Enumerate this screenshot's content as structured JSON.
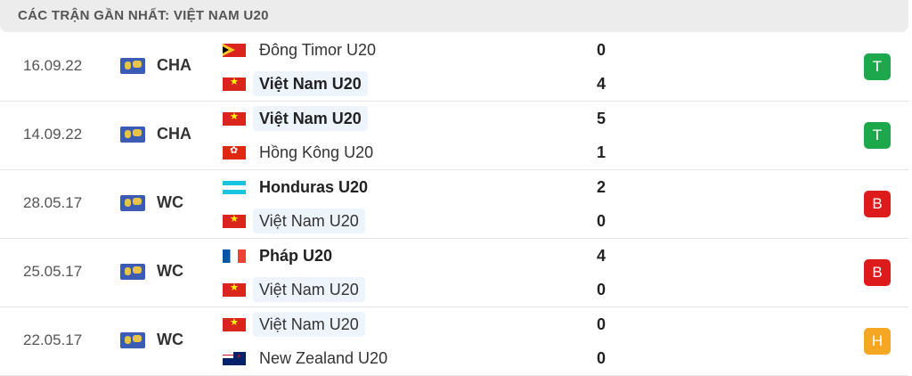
{
  "header": {
    "title": "CÁC TRẬN GẦN NHẤT: VIỆT NAM U20"
  },
  "colors": {
    "win": "#1ca84b",
    "loss": "#dd1b1b",
    "draw": "#f5a623",
    "highlight": "#edf4fc"
  },
  "matches": [
    {
      "date": "16.09.22",
      "competition": "CHA",
      "home": {
        "name": "Đông Timor U20",
        "flag": "tl",
        "score": "0",
        "bold": false,
        "hl": false
      },
      "away": {
        "name": "Việt Nam U20",
        "flag": "vn",
        "score": "4",
        "bold": true,
        "hl": true
      },
      "result": "T",
      "result_color": "#1ca84b"
    },
    {
      "date": "14.09.22",
      "competition": "CHA",
      "home": {
        "name": "Việt Nam U20",
        "flag": "vn",
        "score": "5",
        "bold": true,
        "hl": true
      },
      "away": {
        "name": "Hồng Kông U20",
        "flag": "hk",
        "score": "1",
        "bold": false,
        "hl": false
      },
      "result": "T",
      "result_color": "#1ca84b"
    },
    {
      "date": "28.05.17",
      "competition": "WC",
      "home": {
        "name": "Honduras U20",
        "flag": "hn",
        "score": "2",
        "bold": true,
        "hl": false
      },
      "away": {
        "name": "Việt Nam U20",
        "flag": "vn",
        "score": "0",
        "bold": false,
        "hl": true
      },
      "result": "B",
      "result_color": "#dd1b1b"
    },
    {
      "date": "25.05.17",
      "competition": "WC",
      "home": {
        "name": "Pháp U20",
        "flag": "fr",
        "score": "4",
        "bold": true,
        "hl": false
      },
      "away": {
        "name": "Việt Nam U20",
        "flag": "vn",
        "score": "0",
        "bold": false,
        "hl": true
      },
      "result": "B",
      "result_color": "#dd1b1b"
    },
    {
      "date": "22.05.17",
      "competition": "WC",
      "home": {
        "name": "Việt Nam U20",
        "flag": "vn",
        "score": "0",
        "bold": false,
        "hl": true
      },
      "away": {
        "name": "New Zealand U20",
        "flag": "nz",
        "score": "0",
        "bold": false,
        "hl": false
      },
      "result": "H",
      "result_color": "#f5a623"
    }
  ]
}
